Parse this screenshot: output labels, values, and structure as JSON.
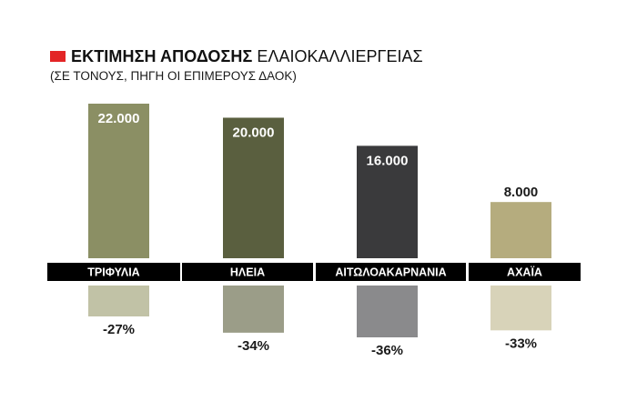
{
  "title": {
    "bold": "ΕΚΤΙΜΗΣΗ ΑΠΟΔΟΣΗΣ",
    "light": "ΕΛΑΙΟΚΑΛΛΙΕΡΓΕΙΑΣ",
    "subtitle": "(ΣΕ ΤΟΝΟΥΣ, ΠΗΓΗ ΟΙ ΕΠΙΜΕΡΟΥΣ ΔΑΟΚ)",
    "marker_color": "#e32526"
  },
  "chart_data": {
    "type": "bar",
    "title": "ΕΚΤΙΜΗΣΗ ΑΠΟΔΟΣΗΣ ΕΛΑΙΟΚΑΛΛΙΕΡΓΕΙΑΣ",
    "subtitle": "(ΣΕ ΤΟΝΟΥΣ, ΠΗΓΗ ΟΙ ΕΠΙΜΕΡΟΥΣ ΔΑΟΚ)",
    "categories": [
      "ΤΡΙΦΥΛΙΑ",
      "ΗΛΕΙΑ",
      "ΑΙΤΩΛΟΑΚΑΡΝΑΝΙΑ",
      "ΑΧΑΪΑ"
    ],
    "values": [
      22000,
      20000,
      16000,
      8000
    ],
    "value_labels": [
      "22.000",
      "20.000",
      "16.000",
      "8.000"
    ],
    "change_pct": [
      -27,
      -34,
      -36,
      -33
    ],
    "change_labels": [
      "-27%",
      "-34%",
      "-36%",
      "-33%"
    ],
    "colors": [
      "#8b8f64",
      "#5a5f3f",
      "#3a3a3c",
      "#b5ac7e"
    ],
    "light_colors": [
      "#c1c2a6",
      "#9b9d88",
      "#8a8a8c",
      "#d8d3b9"
    ],
    "value_label_colors": [
      "#ffffff",
      "#ffffff",
      "#ffffff",
      "#1a1a1a"
    ],
    "category_band_color": "#000000",
    "ylim": [
      0,
      25000
    ],
    "grid": false,
    "legend": "none"
  }
}
